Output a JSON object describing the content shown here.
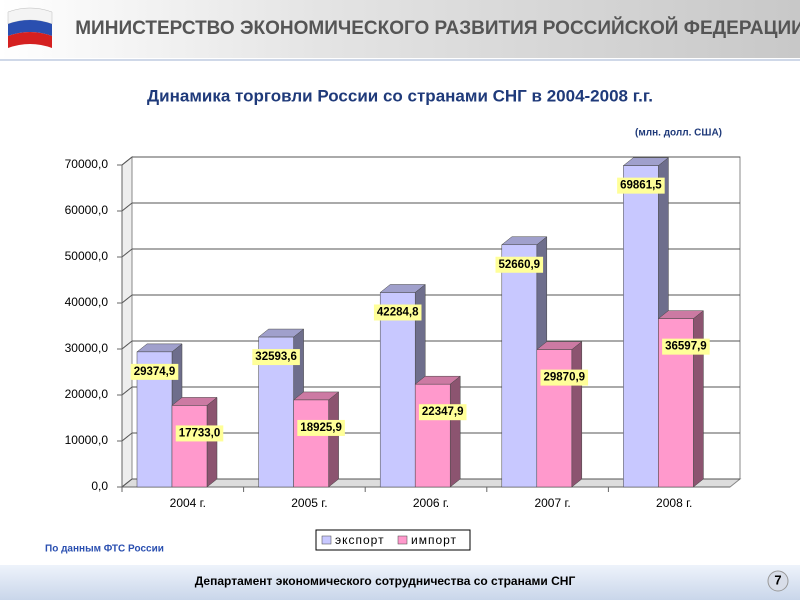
{
  "header": {
    "title": "МИНИСТЕРСТВО ЭКОНОМИЧЕСКОГО РАЗВИТИЯ РОССИЙСКОЙ ФЕДЕРАЦИИ"
  },
  "chart_data": {
    "type": "bar3d",
    "title": "Динамика торговли России со странами СНГ в 2004-2008 г.г.",
    "subtitle": "(млн. долл. США)",
    "categories": [
      "2004 г.",
      "2005 г.",
      "2006 г.",
      "2007 г.",
      "2008 г."
    ],
    "series": [
      {
        "name": "экспорт",
        "color": "#c8c8ff",
        "values": [
          29374.9,
          32593.6,
          42284.8,
          52660.9,
          69861.5
        ],
        "value_labels": [
          "29374,9",
          "32593,6",
          "42284,8",
          "52660,9",
          "69861,5"
        ]
      },
      {
        "name": "импорт",
        "color": "#ff99cc",
        "values": [
          17733.0,
          18925.9,
          22347.9,
          29870.9,
          36597.9
        ],
        "value_labels": [
          "17733,0",
          "18925,9",
          "22347,9",
          "29870,9",
          "36597,9"
        ]
      }
    ],
    "ylim": [
      0,
      70000
    ],
    "yticks": [
      {
        "value": 0,
        "label": "0,0"
      },
      {
        "value": 10000,
        "label": "10000,0"
      },
      {
        "value": 20000,
        "label": "20000,0"
      },
      {
        "value": 30000,
        "label": "30000,0"
      },
      {
        "value": 40000,
        "label": "40000,0"
      },
      {
        "value": 50000,
        "label": "50000,0"
      },
      {
        "value": 60000,
        "label": "60000,0"
      },
      {
        "value": 70000,
        "label": "70000,0"
      }
    ],
    "grid": true
  },
  "source": "По данным ФТС России",
  "footer": {
    "text": "Департамент экономического сотрудничества со странами СНГ",
    "page": "7"
  }
}
